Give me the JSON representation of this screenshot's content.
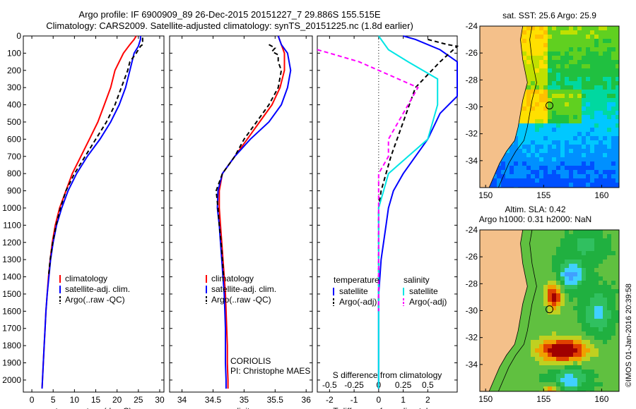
{
  "header": {
    "line1": "Argo profile: IF 6900909_89 26-Dec-2015 20151227_7 29.886S 155.515E",
    "line2": "Climatology: CARS2009. Satellite-adjusted climatology: synTS_20151225.nc (1.8d earlier)"
  },
  "colors": {
    "climatology": "#ff0000",
    "satellite": "#0000ff",
    "argo": "#000000",
    "sat_sal_diff": "#00e5e5",
    "argo_sal_diff": "#ff00ff",
    "land": "#f4c08a"
  },
  "credit": "©IMOS 01-Jan-2016 20:39:58",
  "chart_data": [
    {
      "type": "line",
      "panel": "temperature",
      "xlabel": "temperature (deg C)",
      "ylabel": "",
      "xlim": [
        -2,
        31
      ],
      "ylim": [
        2070,
        0
      ],
      "x_ticks": [
        0,
        5,
        10,
        15,
        20,
        25,
        30
      ],
      "y_ticks": [
        0,
        100,
        200,
        300,
        400,
        500,
        600,
        700,
        800,
        900,
        1000,
        1100,
        1200,
        1300,
        1400,
        1500,
        1600,
        1700,
        1800,
        1900,
        2000
      ],
      "legend": [
        "climatology",
        "satellite-adj. clim.",
        "Argo(..raw -QC)"
      ],
      "series": [
        {
          "name": "climatology",
          "color": "#ff0000",
          "dash": "",
          "points": [
            [
              24.5,
              0
            ],
            [
              24,
              20
            ],
            [
              23,
              50
            ],
            [
              21.5,
              100
            ],
            [
              20.5,
              150
            ],
            [
              19.5,
              200
            ],
            [
              18.5,
              300
            ],
            [
              17,
              400
            ],
            [
              15.5,
              500
            ],
            [
              13.5,
              600
            ],
            [
              11.5,
              700
            ],
            [
              9.5,
              800
            ],
            [
              8,
              900
            ],
            [
              6.5,
              1000
            ],
            [
              5.5,
              1100
            ],
            [
              4.8,
              1200
            ],
            [
              4.3,
              1300
            ],
            [
              3.9,
              1400
            ],
            [
              3.6,
              1500
            ],
            [
              3.3,
              1600
            ],
            [
              3.1,
              1700
            ],
            [
              2.9,
              1800
            ],
            [
              2.7,
              1900
            ],
            [
              2.5,
              2000
            ],
            [
              2.4,
              2050
            ]
          ]
        },
        {
          "name": "satellite-adj. clim.",
          "color": "#0000ff",
          "dash": "",
          "points": [
            [
              25.5,
              0
            ],
            [
              25.5,
              20
            ],
            [
              25,
              60
            ],
            [
              24,
              100
            ],
            [
              23.5,
              150
            ],
            [
              23,
              200
            ],
            [
              22,
              300
            ],
            [
              20.5,
              400
            ],
            [
              18.5,
              500
            ],
            [
              16,
              600
            ],
            [
              13,
              700
            ],
            [
              10.5,
              800
            ],
            [
              8.5,
              900
            ],
            [
              7,
              1000
            ],
            [
              5.8,
              1100
            ],
            [
              5,
              1200
            ],
            [
              4.4,
              1300
            ],
            [
              4,
              1400
            ],
            [
              3.6,
              1500
            ],
            [
              3.3,
              1600
            ],
            [
              3.1,
              1700
            ],
            [
              2.9,
              1800
            ],
            [
              2.7,
              1900
            ],
            [
              2.5,
              2000
            ],
            [
              2.4,
              2050
            ]
          ]
        },
        {
          "name": "Argo(..raw -QC)",
          "color": "#000000",
          "dash": "6,4",
          "points": [
            [
              26,
              10
            ],
            [
              26,
              50
            ],
            [
              25.5,
              60
            ],
            [
              24.5,
              100
            ],
            [
              23,
              150
            ],
            [
              22.5,
              200
            ],
            [
              21,
              300
            ],
            [
              19.5,
              400
            ],
            [
              17.5,
              500
            ],
            [
              15,
              600
            ],
            [
              12.5,
              700
            ],
            [
              10,
              800
            ],
            [
              8,
              900
            ],
            [
              6.7,
              1000
            ],
            [
              5.7,
              1100
            ],
            [
              4.9,
              1200
            ],
            [
              4.3,
              1300
            ],
            [
              3.9,
              1400
            ]
          ]
        }
      ]
    },
    {
      "type": "line",
      "panel": "salinity",
      "xlabel": "salinity",
      "ylabel": "",
      "xlim": [
        33.8,
        36.1
      ],
      "ylim": [
        2070,
        0
      ],
      "x_ticks": [
        34,
        34.5,
        35,
        35.5,
        36
      ],
      "legend": [
        "climatology",
        "satellite-adj. clim.",
        "Argo(..raw -QC)"
      ],
      "annotations": [
        "CORIOLIS",
        "PI: Christophe MAES"
      ],
      "series": [
        {
          "name": "climatology",
          "color": "#ff0000",
          "dash": "",
          "points": [
            [
              35.55,
              0
            ],
            [
              35.6,
              50
            ],
            [
              35.65,
              100
            ],
            [
              35.65,
              200
            ],
            [
              35.58,
              300
            ],
            [
              35.45,
              400
            ],
            [
              35.25,
              500
            ],
            [
              35.05,
              600
            ],
            [
              34.85,
              700
            ],
            [
              34.65,
              800
            ],
            [
              34.6,
              900
            ],
            [
              34.6,
              1000
            ],
            [
              34.62,
              1100
            ],
            [
              34.64,
              1200
            ],
            [
              34.66,
              1300
            ],
            [
              34.68,
              1400
            ],
            [
              34.7,
              1500
            ],
            [
              34.71,
              1600
            ],
            [
              34.72,
              1700
            ],
            [
              34.73,
              1800
            ],
            [
              34.73,
              1900
            ],
            [
              34.74,
              2000
            ],
            [
              34.74,
              2050
            ]
          ]
        },
        {
          "name": "satellite-adj. clim.",
          "color": "#0000ff",
          "dash": "",
          "points": [
            [
              35.55,
              0
            ],
            [
              35.6,
              50
            ],
            [
              35.7,
              100
            ],
            [
              35.75,
              200
            ],
            [
              35.7,
              300
            ],
            [
              35.6,
              400
            ],
            [
              35.4,
              500
            ],
            [
              35.1,
              600
            ],
            [
              34.85,
              700
            ],
            [
              34.65,
              800
            ],
            [
              34.58,
              900
            ],
            [
              34.57,
              1000
            ],
            [
              34.6,
              1100
            ],
            [
              34.62,
              1200
            ],
            [
              34.64,
              1300
            ],
            [
              34.66,
              1400
            ],
            [
              34.68,
              1500
            ],
            [
              34.69,
              1600
            ],
            [
              34.7,
              1700
            ],
            [
              34.7,
              1800
            ],
            [
              34.7,
              1900
            ],
            [
              34.71,
              2000
            ],
            [
              34.71,
              2050
            ]
          ]
        },
        {
          "name": "Argo(..raw -QC)",
          "color": "#000000",
          "dash": "6,4",
          "points": [
            [
              35.4,
              50
            ],
            [
              35.5,
              70
            ],
            [
              35.45,
              90
            ],
            [
              35.55,
              110
            ],
            [
              35.55,
              150
            ],
            [
              35.6,
              200
            ],
            [
              35.55,
              300
            ],
            [
              35.4,
              400
            ],
            [
              35.2,
              500
            ],
            [
              35,
              600
            ],
            [
              34.85,
              700
            ],
            [
              34.65,
              800
            ],
            [
              34.55,
              900
            ],
            [
              34.58,
              1000
            ],
            [
              34.6,
              1100
            ],
            [
              34.63,
              1200
            ],
            [
              34.65,
              1300
            ],
            [
              34.67,
              1400
            ]
          ]
        }
      ]
    },
    {
      "type": "line",
      "panel": "difference",
      "xlabel_bottom": "T difference from climatology",
      "xlabel_top": "S difference from climatology",
      "xlim": [
        -2.5,
        3.2
      ],
      "ylim": [
        2070,
        0
      ],
      "x_ticks": [
        -2,
        -1,
        0,
        1,
        2
      ],
      "s_ticks": [
        -0.5,
        -0.25,
        0,
        0.25,
        0.5
      ],
      "s_ticklabels": [
        "-0.5",
        "-0.25",
        "0",
        "0.25",
        "0.5"
      ],
      "legend": {
        "temperature": [
          "satellite",
          "Argo(-adj)"
        ],
        "salinity": [
          "satellite",
          "Argo(-adj)"
        ]
      },
      "legend_headers": [
        "temperature",
        "salinity"
      ],
      "series": [
        {
          "name": "satellite",
          "group": "temperature",
          "color": "#0000ff",
          "dash": "",
          "points": [
            [
              1,
              0
            ],
            [
              1.5,
              20
            ],
            [
              2.5,
              80
            ],
            [
              3.2,
              150
            ],
            [
              3.2,
              200
            ],
            [
              3.2,
              350
            ],
            [
              2.5,
              450
            ],
            [
              2,
              600
            ],
            [
              1.5,
              700
            ],
            [
              1,
              800
            ],
            [
              0.6,
              900
            ],
            [
              0.4,
              1000
            ],
            [
              0.3,
              1100
            ],
            [
              0.2,
              1200
            ],
            [
              0.1,
              1300
            ],
            [
              0.05,
              1400
            ],
            [
              0,
              1500
            ],
            [
              0,
              1600
            ],
            [
              0,
              1700
            ],
            [
              0,
              1800
            ],
            [
              0,
              1900
            ],
            [
              0,
              2000
            ],
            [
              0,
              2050
            ]
          ]
        },
        {
          "name": "Argo(-adj)",
          "group": "temperature",
          "color": "#000000",
          "dash": "6,4",
          "points": [
            [
              2,
              20
            ],
            [
              2.8,
              50
            ],
            [
              3.2,
              60
            ],
            [
              2.5,
              150
            ],
            [
              1.5,
              300
            ],
            [
              1,
              500
            ],
            [
              0.5,
              700
            ],
            [
              0.1,
              900
            ],
            [
              0,
              1000
            ],
            [
              0,
              1100
            ],
            [
              0,
              1200
            ],
            [
              0,
              1300
            ],
            [
              0,
              1400
            ],
            [
              0,
              1500
            ],
            [
              0,
              1600
            ]
          ]
        },
        {
          "name": "satellite",
          "group": "salinity",
          "color": "#00e5e5",
          "dash": "",
          "points": [
            [
              0,
              0
            ],
            [
              0.1,
              80
            ],
            [
              0.3,
              150
            ],
            [
              0.6,
              250
            ],
            [
              0.6,
              400
            ],
            [
              0.55,
              500
            ],
            [
              0.5,
              600
            ],
            [
              0.3,
              700
            ],
            [
              0.1,
              800
            ],
            [
              0.05,
              900
            ],
            [
              0,
              1000
            ],
            [
              0,
              1100
            ],
            [
              0,
              1200
            ],
            [
              0,
              1300
            ],
            [
              0,
              1400
            ],
            [
              0,
              1500
            ],
            [
              0,
              1600
            ],
            [
              0,
              1700
            ],
            [
              0,
              1800
            ],
            [
              0,
              1900
            ],
            [
              0,
              2000
            ],
            [
              0,
              2050
            ]
          ]
        },
        {
          "name": "Argo(-adj)",
          "group": "salinity",
          "color": "#ff00ff",
          "dash": "6,4",
          "points": [
            [
              -0.8,
              80
            ],
            [
              -0.5,
              100
            ],
            [
              -0.2,
              150
            ],
            [
              0.4,
              300
            ],
            [
              0.3,
              400
            ],
            [
              0.2,
              500
            ],
            [
              0.1,
              600
            ],
            [
              0.1,
              700
            ],
            [
              0,
              800
            ],
            [
              0,
              900
            ],
            [
              0,
              1000
            ],
            [
              0,
              1100
            ],
            [
              0,
              1200
            ],
            [
              0,
              1300
            ],
            [
              0,
              1400
            ],
            [
              0,
              1500
            ],
            [
              0,
              1600
            ]
          ]
        }
      ]
    },
    {
      "type": "heatmap",
      "panel": "sst_map",
      "title": "sat. SST: 25.6  Argo: 25.9",
      "xlim": [
        149.5,
        161.5
      ],
      "ylim": [
        -36,
        -24
      ],
      "x_ticks": [
        150,
        155,
        160
      ],
      "y_ticks": [
        -24,
        -26,
        -28,
        -30,
        -32,
        -34
      ],
      "float_position": [
        155.5,
        -29.9
      ]
    },
    {
      "type": "heatmap",
      "panel": "sla_map",
      "title_line1": "Altim. SLA: 0.42",
      "title_line2": "Argo h1000: 0.31  h2000: NaN",
      "xlim": [
        149.5,
        161.5
      ],
      "ylim": [
        -36,
        -24
      ],
      "x_ticks": [
        150,
        155,
        160
      ],
      "y_ticks": [
        -24,
        -26,
        -28,
        -30,
        -32,
        -34
      ],
      "float_position": [
        155.5,
        -29.9
      ]
    }
  ]
}
